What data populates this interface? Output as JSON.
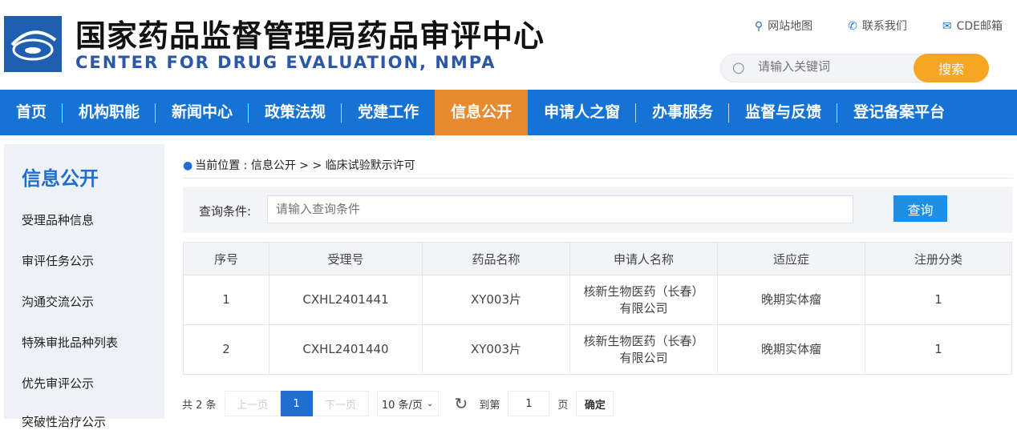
{
  "header": {
    "title_cn": "国家药品监督管理局药品审评中心",
    "title_en": "CENTER FOR DRUG EVALUATION, NMPA",
    "links": [
      {
        "icon": "location-pin-icon",
        "label": "网站地图"
      },
      {
        "icon": "phone-icon",
        "label": "联系我们"
      },
      {
        "icon": "mail-icon",
        "label": "CDE邮箱"
      }
    ],
    "search_placeholder": "请输入关键词",
    "search_button": "搜索"
  },
  "nav": [
    "首页",
    "机构职能",
    "新闻中心",
    "政策法规",
    "党建工作",
    "信息公开",
    "申请人之窗",
    "办事服务",
    "监督与反馈",
    "登记备案平台"
  ],
  "nav_active": "信息公开",
  "sidebar": {
    "title": "信息公开",
    "items": [
      "受理品种信息",
      "审评任务公示",
      "沟通交流公示",
      "特殊审批品种列表",
      "优先审评公示",
      "突破性治疗公示"
    ]
  },
  "breadcrumb": "当前位置 : 信息公开 > > 临床试验默示许可",
  "query": {
    "label": "查询条件:",
    "placeholder": "请输入查询条件",
    "button": "查询"
  },
  "table": {
    "headers": [
      "序号",
      "受理号",
      "药品名称",
      "申请人名称",
      "适应症",
      "注册分类"
    ],
    "rows": [
      [
        "1",
        "CXHL2401441",
        "XY003片",
        "核新生物医药（长春）有限公司",
        "晚期实体瘤",
        "1"
      ],
      [
        "2",
        "CXHL2401440",
        "XY003片",
        "核新生物医药（长春）有限公司",
        "晚期实体瘤",
        "1"
      ]
    ]
  },
  "pager": {
    "total": "共 2 条",
    "prev": "上一页",
    "page": "1",
    "next": "下一页",
    "size": "10 条/页",
    "goto": "到第",
    "goto_value": "1",
    "page_unit": "页",
    "confirm": "确定"
  },
  "colors": {
    "brand": "#1573d4",
    "active": "#e8892e",
    "search": "#f5a623"
  }
}
